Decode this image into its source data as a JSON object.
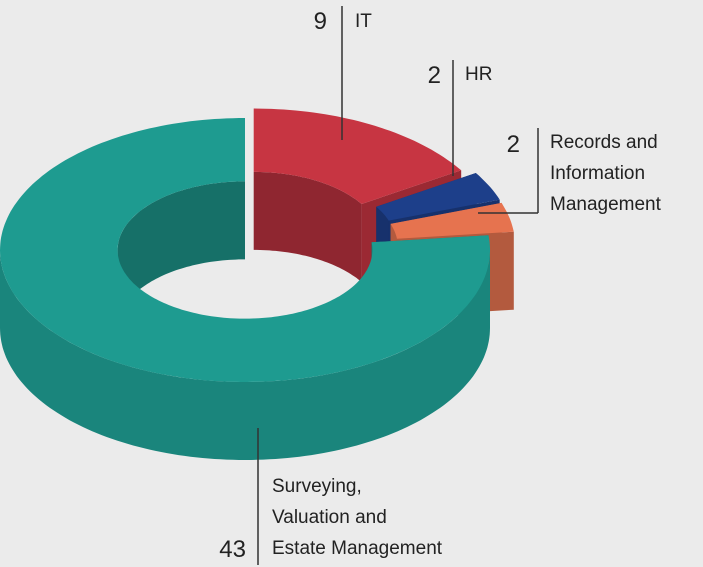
{
  "chart_data": {
    "type": "donut3d",
    "categories": [
      "IT",
      "HR",
      "Records and\nInformation\nManagement",
      "Surveying,\nValuation and\nEstate Management"
    ],
    "values": [
      9,
      2,
      2,
      43
    ],
    "colors": [
      "#c73542",
      "#1d3f8a",
      "#e6734f",
      "#1e9b90"
    ]
  }
}
